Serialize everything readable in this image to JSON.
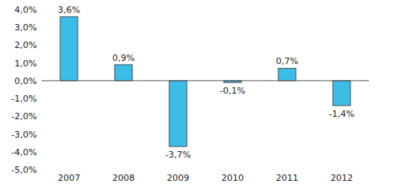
{
  "chart_data": {
    "type": "bar",
    "categories": [
      "2007",
      "2008",
      "2009",
      "2010",
      "2011",
      "2012"
    ],
    "values": [
      3.6,
      0.9,
      -3.7,
      -0.1,
      0.7,
      -1.4
    ],
    "value_labels": [
      "3,6%",
      "0,9%",
      "-3,7%",
      "-0,1%",
      "0,7%",
      "-1,4%"
    ],
    "color": "#3bbde8",
    "ylim": [
      -5,
      4
    ],
    "yticks": [
      {
        "value": -5,
        "label": "-5,0%"
      },
      {
        "value": -4,
        "label": "-4,0%"
      },
      {
        "value": -3,
        "label": "-3,0%"
      },
      {
        "value": -2,
        "label": "-2,0%"
      },
      {
        "value": -1,
        "label": "-1,0%"
      },
      {
        "value": 0,
        "label": "0,0%"
      },
      {
        "value": 1,
        "label": "1,0%"
      },
      {
        "value": 2,
        "label": "2,0%"
      },
      {
        "value": 3,
        "label": "3,0%"
      },
      {
        "value": 4,
        "label": "4,0%"
      }
    ],
    "grid": false,
    "data_labels": true
  }
}
